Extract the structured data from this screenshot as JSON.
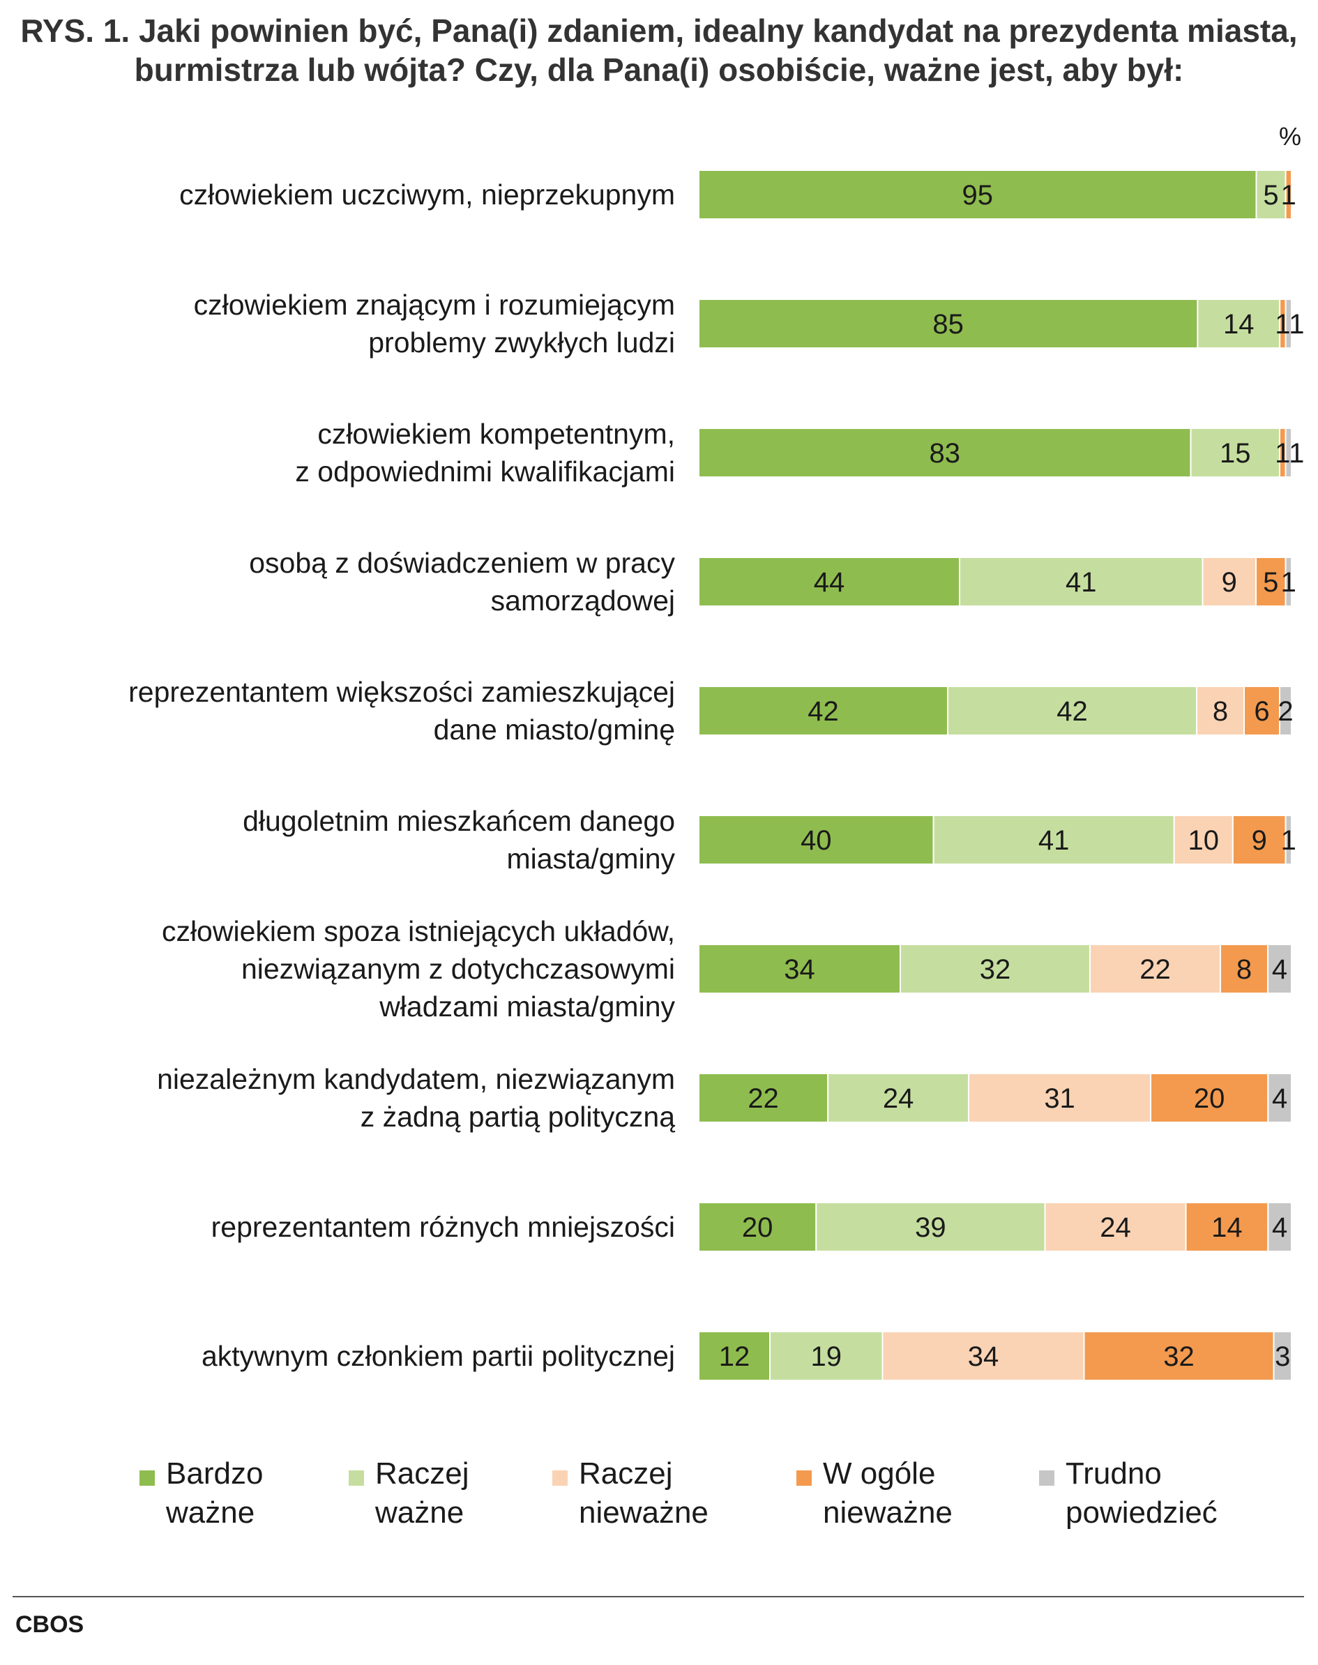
{
  "chart_data": {
    "type": "bar",
    "orientation": "horizontal",
    "stacked": true,
    "title": "RYS. 1. Jaki powinien być, Pana(i) zdaniem, idealny kandydat na prezydenta miasta,\nburmistrza lub wójta? Czy, dla Pana(i) osobiście, ważne jest, aby był:",
    "unit": "%",
    "xlim": [
      0,
      100
    ],
    "categories": [
      "człowiekiem uczciwym, nieprzekupnym",
      "człowiekiem znającym i rozumiejącym\nproblemy zwykłych ludzi",
      "człowiekiem kompetentnym,\nz odpowiednimi kwalifikacjami",
      "osobą z doświadczeniem w pracy\nsamorządowej",
      "reprezentantem większości zamieszkującej\ndane miasto/gminę",
      "długoletnim mieszkańcem danego\nmiasta/gminy",
      "człowiekiem spoza istniejących układów,\nniezwiązanym z dotychczasowymi\nwładzami miasta/gminy",
      "niezależnym kandydatem, niezwiązanym\nz żadną partią polityczną",
      "reprezentantem różnych mniejszości",
      "aktywnym członkiem partii politycznej"
    ],
    "series": [
      {
        "name": "Bardzo\nważne",
        "color": "#8fbc4f",
        "values": [
          95,
          85,
          83,
          44,
          42,
          40,
          34,
          22,
          20,
          12
        ]
      },
      {
        "name": "Raczej\nważne",
        "color": "#c5de9f",
        "values": [
          5,
          14,
          15,
          41,
          42,
          41,
          32,
          24,
          39,
          19
        ]
      },
      {
        "name": "Raczej\nnieważne",
        "color": "#fad3b4",
        "values": [
          0,
          0,
          0,
          9,
          8,
          10,
          22,
          31,
          24,
          34
        ]
      },
      {
        "name": "W ogóle\nnieważne",
        "color": "#f39a4e",
        "values": [
          1,
          1,
          1,
          5,
          6,
          9,
          8,
          20,
          14,
          32
        ]
      },
      {
        "name": "Trudno\npowiedzieć",
        "color": "#c6c6c6",
        "values": [
          0,
          1,
          1,
          1,
          2,
          1,
          4,
          4,
          4,
          3
        ]
      }
    ],
    "value_labels": [
      [
        "95",
        "5",
        "",
        "1",
        ""
      ],
      [
        "85",
        "14",
        "",
        "1",
        "1"
      ],
      [
        "83",
        "15",
        "",
        "1",
        "1"
      ],
      [
        "44",
        "41",
        "9",
        "5",
        "1"
      ],
      [
        "42",
        "42",
        "8",
        "6",
        "2"
      ],
      [
        "40",
        "41",
        "10",
        "9",
        "1"
      ],
      [
        "34",
        "32",
        "22",
        "8",
        "4"
      ],
      [
        "22",
        "24",
        "31",
        "20",
        "4"
      ],
      [
        "20",
        "39",
        "24",
        "14",
        "4"
      ],
      [
        "12",
        "19",
        "34",
        "32",
        "3"
      ]
    ],
    "legend_position": "bottom"
  },
  "source": "CBOS"
}
